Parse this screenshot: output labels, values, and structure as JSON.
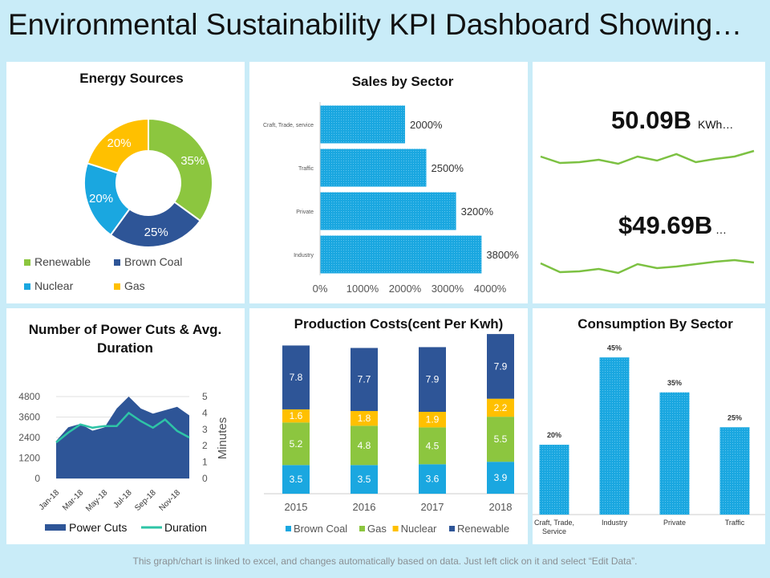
{
  "header": {
    "title": "Environmental Sustainability KPI Dashboard Showing…"
  },
  "footer": {
    "note": "This graph/chart is linked to excel, and changes automatically based on data. Just left click on it and select “Edit Data”."
  },
  "colors": {
    "green": "#8cc63f",
    "navy": "#2e5597",
    "cyan": "#1aa7e0",
    "yellow": "#ffc000",
    "lightblue": "#1aa7e0",
    "kpiline": "#7cc142"
  },
  "kpi": {
    "value1": "50.09B",
    "unit1": "KWh…",
    "value2": "$49.69B",
    "unit2": "…"
  },
  "chart_data": [
    {
      "type": "pie",
      "title": "Energy Sources",
      "categories": [
        "Renewable",
        "Brown Coal",
        "Nuclear",
        "Gas"
      ],
      "values": [
        35,
        25,
        20,
        20
      ],
      "labels": [
        "35%",
        "25%",
        "20%",
        "20%"
      ],
      "legend": "bottom"
    },
    {
      "type": "bar",
      "orientation": "horizontal",
      "title": "Sales by Sector",
      "categories": [
        "Craft, Trade, service",
        "Traffic",
        "Private",
        "Industry"
      ],
      "values": [
        2000,
        2500,
        3200,
        3800
      ],
      "labels": [
        "2000%",
        "2500%",
        "3200%",
        "3800%"
      ],
      "xticks": [
        "0%",
        "1000%",
        "2000%",
        "3000%",
        "4000%"
      ],
      "xlim": [
        0,
        4000
      ]
    },
    {
      "type": "line",
      "title": "",
      "series": [
        {
          "values": [
            52,
            44,
            45,
            48,
            43,
            52,
            47,
            55,
            45,
            49,
            52,
            59
          ]
        },
        {
          "values": [
            42,
            31,
            32,
            35,
            30,
            41,
            36,
            38,
            41,
            44,
            46,
            43
          ]
        }
      ]
    },
    {
      "type": "area",
      "title": "Number of Power Cuts & Avg. Duration",
      "x": [
        "Jan-18",
        "Feb-18",
        "Mar-18",
        "Apr-18",
        "May-18",
        "Jun-18",
        "Jul-18",
        "Aug-18",
        "Sep-18",
        "Oct-18",
        "Nov-18",
        "Dec-18"
      ],
      "xticks": [
        "Jan-18",
        "Mar-18",
        "May-18",
        "Jul-18",
        "Sep-18",
        "Nov-18"
      ],
      "series": [
        {
          "name": "Power Cuts",
          "type": "area",
          "axis": "left",
          "values": [
            2200,
            3000,
            3200,
            2800,
            3000,
            4100,
            4800,
            4100,
            3800,
            4000,
            4200,
            3700
          ]
        },
        {
          "name": "Duration",
          "type": "line",
          "axis": "right",
          "values": [
            2.2,
            2.8,
            3.3,
            3.1,
            3.2,
            3.2,
            4.0,
            3.5,
            3.1,
            3.6,
            2.9,
            2.5
          ]
        }
      ],
      "ylim": [
        0,
        4800
      ],
      "yticks": [
        "0",
        "1200",
        "2400",
        "3600",
        "4800"
      ],
      "y2lim": [
        0,
        5
      ],
      "y2ticks": [
        "0",
        "1",
        "2",
        "3",
        "4",
        "5"
      ],
      "y2label": "Minutes",
      "legend": "bottom"
    },
    {
      "type": "bar",
      "stacked": true,
      "title": "Production Costs(cent Per Kwh)",
      "categories": [
        "2015",
        "2016",
        "2017",
        "2018"
      ],
      "series": [
        {
          "name": "Brown Coal",
          "values": [
            3.5,
            3.5,
            3.6,
            3.9
          ]
        },
        {
          "name": "Gas",
          "values": [
            5.2,
            4.8,
            4.5,
            5.5
          ]
        },
        {
          "name": "Nuclear",
          "values": [
            1.6,
            1.8,
            1.9,
            2.2
          ]
        },
        {
          "name": "Renewable",
          "values": [
            7.8,
            7.7,
            7.9,
            7.9
          ]
        }
      ],
      "legend": "bottom"
    },
    {
      "type": "bar",
      "title": "Consumption By Sector",
      "categories": [
        "Craft, Trade, Service",
        "Industry",
        "Private",
        "Traffic"
      ],
      "values": [
        20,
        45,
        35,
        25
      ],
      "labels": [
        "20%",
        "45%",
        "35%",
        "25%"
      ]
    }
  ]
}
